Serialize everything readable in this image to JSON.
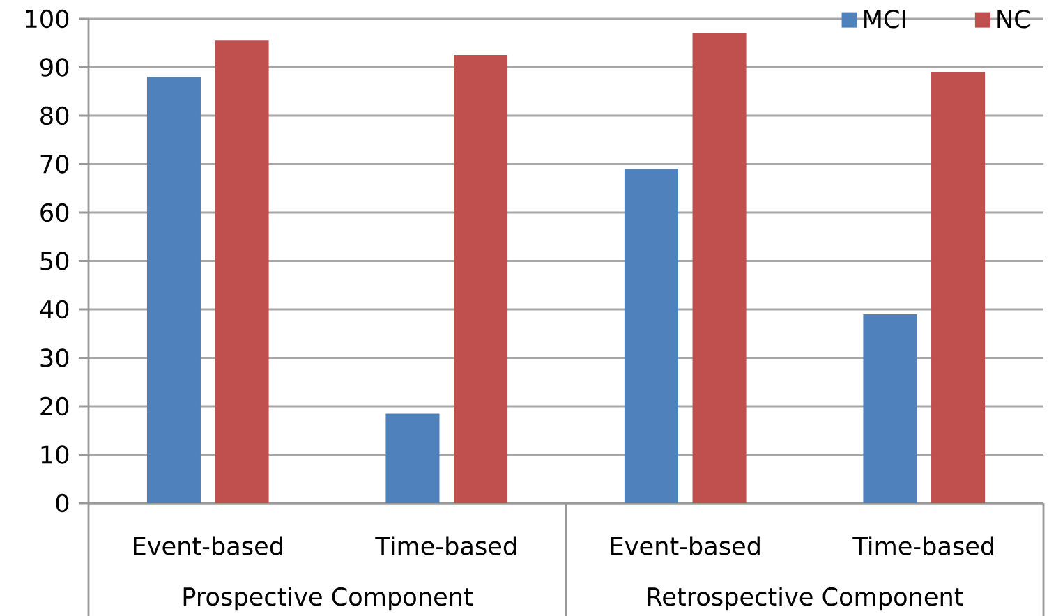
{
  "chart_data": {
    "type": "bar",
    "categories": [
      "Event-based",
      "Time-based",
      "Event-based",
      "Time-based"
    ],
    "series": [
      {
        "name": "MCI",
        "color": "#4f81bd",
        "values": [
          88,
          18.5,
          69,
          39
        ]
      },
      {
        "name": "NC",
        "color": "#c0504d",
        "values": [
          95.5,
          92.5,
          97,
          89
        ]
      }
    ],
    "annotations": [
      "Prospective Component",
      "Retrospective Component"
    ],
    "ylim": [
      0,
      100
    ],
    "yticks": [
      0,
      10,
      20,
      30,
      40,
      50,
      60,
      70,
      80,
      90,
      100
    ],
    "grid": "y",
    "legend": "top right"
  }
}
